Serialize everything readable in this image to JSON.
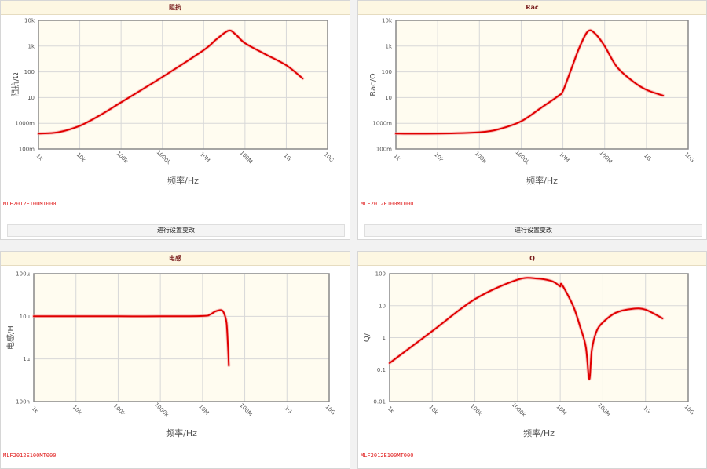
{
  "part_number": "MLF2012E100MT000",
  "settings_button_label": "进行设置变改",
  "colors": {
    "curve": "#e00000",
    "plot_bg": "#fffcf0",
    "grid": "#d8d8d8",
    "header_bg": "#fdf7e2"
  },
  "panels": [
    {
      "title": "阻抗"
    },
    {
      "title": "Rac"
    },
    {
      "title": "电感"
    },
    {
      "title": "Q"
    }
  ],
  "chart_data": [
    {
      "type": "line",
      "title": "阻抗",
      "xlabel": "频率/Hz",
      "ylabel": "阻抗/Ω",
      "x_scale": "log",
      "y_scale": "log",
      "xlim": [
        1000,
        10000000000
      ],
      "ylim": [
        0.1,
        10000
      ],
      "x_tick_values": [
        1000,
        10000,
        100000,
        1000000,
        10000000,
        100000000,
        1000000000,
        10000000000
      ],
      "x_tick_labels": [
        "1k",
        "10k",
        "100k",
        "1000k",
        "10M",
        "100M",
        "1G",
        "10G"
      ],
      "y_tick_values": [
        0.1,
        1,
        10,
        100,
        1000,
        10000
      ],
      "y_tick_labels": [
        "100m",
        "1000m",
        "10",
        "100",
        "1k",
        "10k"
      ],
      "grid": true,
      "series": [
        {
          "x": [
            1000,
            3000,
            10000,
            30000,
            100000,
            1000000,
            10000000,
            20000000,
            40000000,
            60000000,
            100000000,
            300000000,
            1000000000,
            2500000000
          ],
          "y": [
            0.4,
            0.45,
            0.8,
            2,
            6.5,
            63,
            700,
            1800,
            4000,
            2800,
            1300,
            500,
            180,
            55
          ]
        }
      ]
    },
    {
      "type": "line",
      "title": "Rac",
      "xlabel": "频率/Hz",
      "ylabel": "Rac/Ω",
      "x_scale": "log",
      "y_scale": "log",
      "xlim": [
        1000,
        10000000000
      ],
      "ylim": [
        0.1,
        10000
      ],
      "x_tick_values": [
        1000,
        10000,
        100000,
        1000000,
        10000000,
        100000000,
        1000000000,
        10000000000
      ],
      "x_tick_labels": [
        "1k",
        "10k",
        "100k",
        "1000k",
        "10M",
        "100M",
        "1G",
        "10G"
      ],
      "y_tick_values": [
        0.1,
        1,
        10,
        100,
        1000,
        10000
      ],
      "y_tick_labels": [
        "100m",
        "1000m",
        "10",
        "100",
        "1k",
        "10k"
      ],
      "grid": true,
      "series": [
        {
          "x": [
            1000,
            10000,
            100000,
            300000,
            1000000,
            3000000,
            8000000,
            10000000,
            15000000,
            25000000,
            40000000,
            60000000,
            100000000,
            200000000,
            500000000,
            1000000000,
            2500000000
          ],
          "y": [
            0.4,
            0.4,
            0.45,
            0.6,
            1.2,
            4,
            12,
            18,
            100,
            900,
            3800,
            3000,
            1000,
            150,
            40,
            20,
            12
          ]
        }
      ]
    },
    {
      "type": "line",
      "title": "电感",
      "xlabel": "频率/Hz",
      "ylabel": "电感/H",
      "x_scale": "log",
      "y_scale": "log",
      "xlim": [
        1000,
        10000000000
      ],
      "ylim": [
        1e-07,
        0.0001
      ],
      "x_tick_values": [
        1000,
        10000,
        100000,
        1000000,
        10000000,
        100000000,
        1000000000,
        10000000000
      ],
      "x_tick_labels": [
        "1k",
        "10k",
        "100k",
        "1000k",
        "10M",
        "100M",
        "1G",
        "10G"
      ],
      "y_tick_values": [
        1e-07,
        1e-06,
        1e-05,
        0.0001
      ],
      "y_tick_labels": [
        "100n",
        "1μ",
        "10μ",
        "100μ"
      ],
      "grid": true,
      "series": [
        {
          "x": [
            1000,
            10000,
            100000,
            1000000,
            10000000,
            15000000,
            20000000,
            27000000,
            32000000,
            37000000,
            40000000,
            42000000
          ],
          "y": [
            1e-05,
            1e-05,
            1e-05,
            1e-05,
            1.02e-05,
            1.1e-05,
            1.3e-05,
            1.4e-05,
            1.2e-05,
            7e-06,
            2e-06,
            7e-07
          ]
        }
      ]
    },
    {
      "type": "line",
      "title": "Q",
      "xlabel": "频率/Hz",
      "ylabel": "Q/",
      "x_scale": "log",
      "y_scale": "log",
      "xlim": [
        1000,
        10000000000
      ],
      "ylim": [
        0.01,
        100
      ],
      "x_tick_values": [
        1000,
        10000,
        100000,
        1000000,
        10000000,
        100000000,
        1000000000,
        10000000000
      ],
      "x_tick_labels": [
        "1k",
        "10k",
        "100k",
        "1000k",
        "10M",
        "100M",
        "1G",
        "10G"
      ],
      "y_tick_values": [
        0.01,
        0.1,
        1,
        10,
        100
      ],
      "y_tick_labels": [
        "0.01",
        "0.1",
        "1",
        "10",
        "100"
      ],
      "grid": true,
      "series": [
        {
          "x": [
            1000,
            10000,
            100000,
            1000000,
            3000000,
            6000000,
            8000000,
            10000000,
            11000000,
            20000000,
            30000000,
            40000000,
            48000000,
            55000000,
            70000000,
            100000000,
            200000000,
            500000000,
            1000000000,
            2500000000
          ],
          "y": [
            0.16,
            1.6,
            16,
            65,
            70,
            60,
            50,
            40,
            45,
            10,
            2,
            0.5,
            0.05,
            0.4,
            1.5,
            3,
            6,
            8,
            7.5,
            4
          ]
        }
      ]
    }
  ]
}
